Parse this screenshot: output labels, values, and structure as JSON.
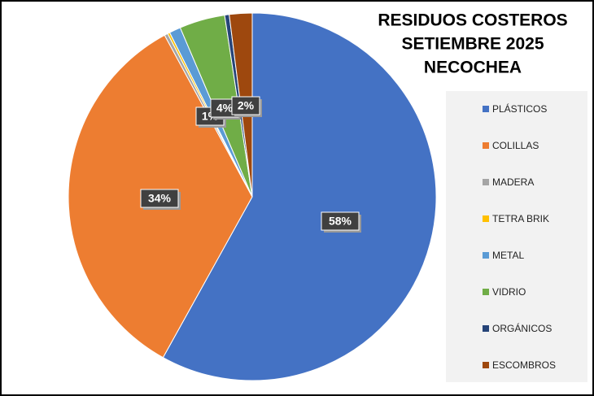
{
  "chart_data": {
    "type": "pie",
    "title": [
      "RESIDUOS COSTEROS",
      "SETIEMBRE 2025",
      "NECOCHEA"
    ],
    "categories": [
      "PLÁSTICOS",
      "COLILLAS",
      "MADERA",
      "TETRA BRIK",
      "METAL",
      "VIDRIO",
      "ORGÁNICOS",
      "ESCOMBROS"
    ],
    "values": [
      58,
      34,
      0.3,
      0.2,
      1,
      4,
      0.4,
      2
    ],
    "value_labels": [
      "58%",
      "34%",
      null,
      null,
      "1%",
      "4%",
      null,
      "2%"
    ],
    "colors": [
      "#4472c4",
      "#ed7d31",
      "#a5a5a5",
      "#ffc000",
      "#5b9bd5",
      "#70ad47",
      "#264478",
      "#9e480e"
    ],
    "legend": "right"
  }
}
